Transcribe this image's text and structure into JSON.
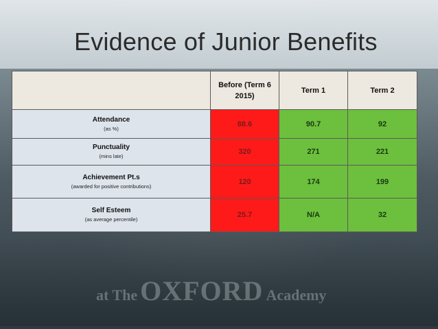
{
  "slide": {
    "title": "Evidence of Junior Benefits",
    "footer": {
      "prefix": "at The",
      "name": "OXFORD",
      "suffix": "Academy"
    }
  },
  "table": {
    "headers": [
      "",
      "Before (Term 6 2015)",
      "Term 1",
      "Term 2"
    ],
    "rows": [
      {
        "label": "Attendance",
        "sublabel": "(as %)",
        "values": [
          "88.6",
          "90.7",
          "92"
        ]
      },
      {
        "label": "Punctuality",
        "sublabel": "(mins late)",
        "values": [
          "320",
          "271",
          "221"
        ]
      },
      {
        "label": "Achievement Pt.s",
        "sublabel": "(awarded for positive contributions)",
        "values": [
          "120",
          "174",
          "199"
        ]
      },
      {
        "label": "Self Esteem",
        "sublabel": "(as average percentile)",
        "values": [
          "25.7",
          "N/A",
          "32"
        ]
      }
    ]
  },
  "colors": {
    "before": "#ff1a1a",
    "after": "#6dbf3e",
    "header": "#ede9e0",
    "row_label": "#dde4ec"
  }
}
